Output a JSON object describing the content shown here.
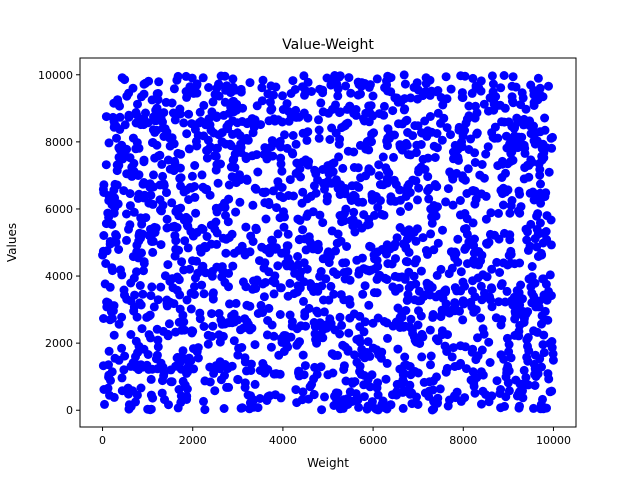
{
  "chart_data": {
    "type": "scatter",
    "title": "Value-Weight",
    "xlabel": "Weight",
    "ylabel": "Values",
    "xlim": [
      -500,
      10500
    ],
    "ylim": [
      -500,
      10500
    ],
    "xticks": [
      0,
      2000,
      4000,
      6000,
      8000,
      10000
    ],
    "yticks": [
      0,
      2000,
      4000,
      6000,
      8000,
      10000
    ],
    "grid": false,
    "point_color": "#0000ff",
    "approx_point_count": 2000,
    "point_distribution": "uniform",
    "point_range": {
      "x": [
        0,
        10000
      ],
      "y": [
        0,
        10000
      ]
    }
  }
}
